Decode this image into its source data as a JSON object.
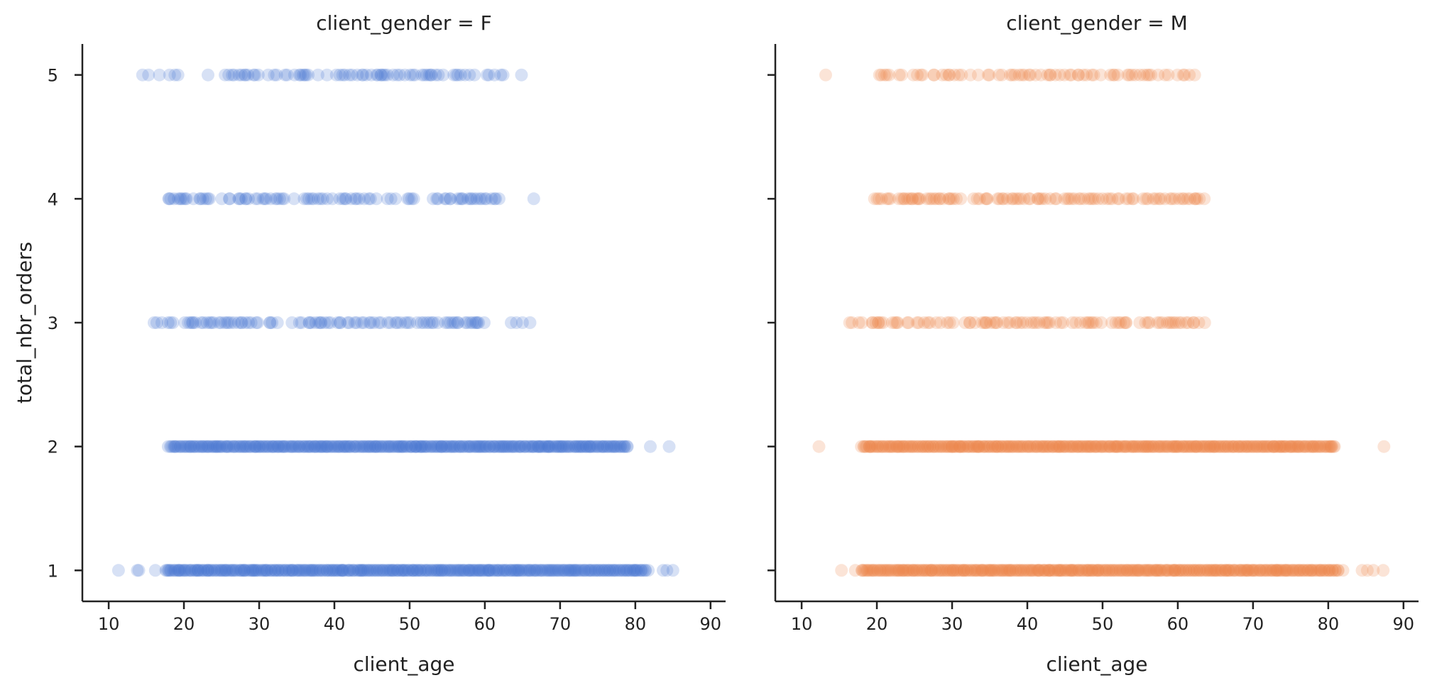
{
  "chart_data": {
    "type": "scatter",
    "x_label": "client_age",
    "y_label": "total_nbr_orders",
    "xlim": [
      6.5,
      92
    ],
    "ylim": [
      0.75,
      5.25
    ],
    "x_ticks": [
      10,
      20,
      30,
      40,
      50,
      60,
      70,
      80,
      90
    ],
    "y_ticks": [
      1,
      2,
      3,
      4,
      5
    ],
    "grid": false,
    "legend": "none",
    "sharey": true,
    "point_alpha": 0.22,
    "panels": [
      {
        "title": "client_gender = F",
        "color": "#4878d0",
        "series": [
          {
            "y": 5,
            "dense_range": [
              26,
              63
            ],
            "sparse_range": [
              14,
              65
            ],
            "outliers": [
              14.5,
              15.3,
              18.8,
              23.2
            ]
          },
          {
            "y": 4,
            "dense_range": [
              18,
              62
            ],
            "sparse_range": [
              18,
              62.5
            ],
            "outliers": [
              66.5
            ]
          },
          {
            "y": 3,
            "dense_range": [
              18,
              60
            ],
            "sparse_range": [
              16,
              61
            ],
            "outliers": [
              16.4,
              63.5,
              64.2,
              65,
              66
            ]
          },
          {
            "y": 2,
            "dense_range": [
              18,
              79
            ],
            "sparse_range": [
              18,
              81
            ],
            "outliers": [
              82,
              84.5
            ]
          },
          {
            "y": 1,
            "dense_range": [
              17.5,
              81.5
            ],
            "sparse_range": [
              16.5,
              83
            ],
            "outliers": [
              11.3,
              13.8,
              14,
              83.7,
              84.2,
              85
            ]
          }
        ]
      },
      {
        "title": "client_gender = M",
        "color": "#ee854a",
        "series": [
          {
            "y": 5,
            "dense_range": [
              20,
              62
            ],
            "sparse_range": [
              19.5,
              62.5
            ],
            "outliers": [
              13.2
            ]
          },
          {
            "y": 4,
            "dense_range": [
              19,
              63
            ],
            "sparse_range": [
              18,
              63.5
            ],
            "outliers": []
          },
          {
            "y": 3,
            "dense_range": [
              19.5,
              63
            ],
            "sparse_range": [
              16.5,
              64.2
            ],
            "outliers": [
              16.7,
              17.6
            ]
          },
          {
            "y": 2,
            "dense_range": [
              18,
              81
            ],
            "sparse_range": [
              18,
              81.2
            ],
            "outliers": [
              12.3,
              87.4
            ]
          },
          {
            "y": 1,
            "dense_range": [
              18,
              81.5
            ],
            "sparse_range": [
              17,
              84
            ],
            "outliers": [
              15.3,
              84.5,
              85.2,
              86,
              87.3
            ]
          }
        ]
      }
    ]
  }
}
